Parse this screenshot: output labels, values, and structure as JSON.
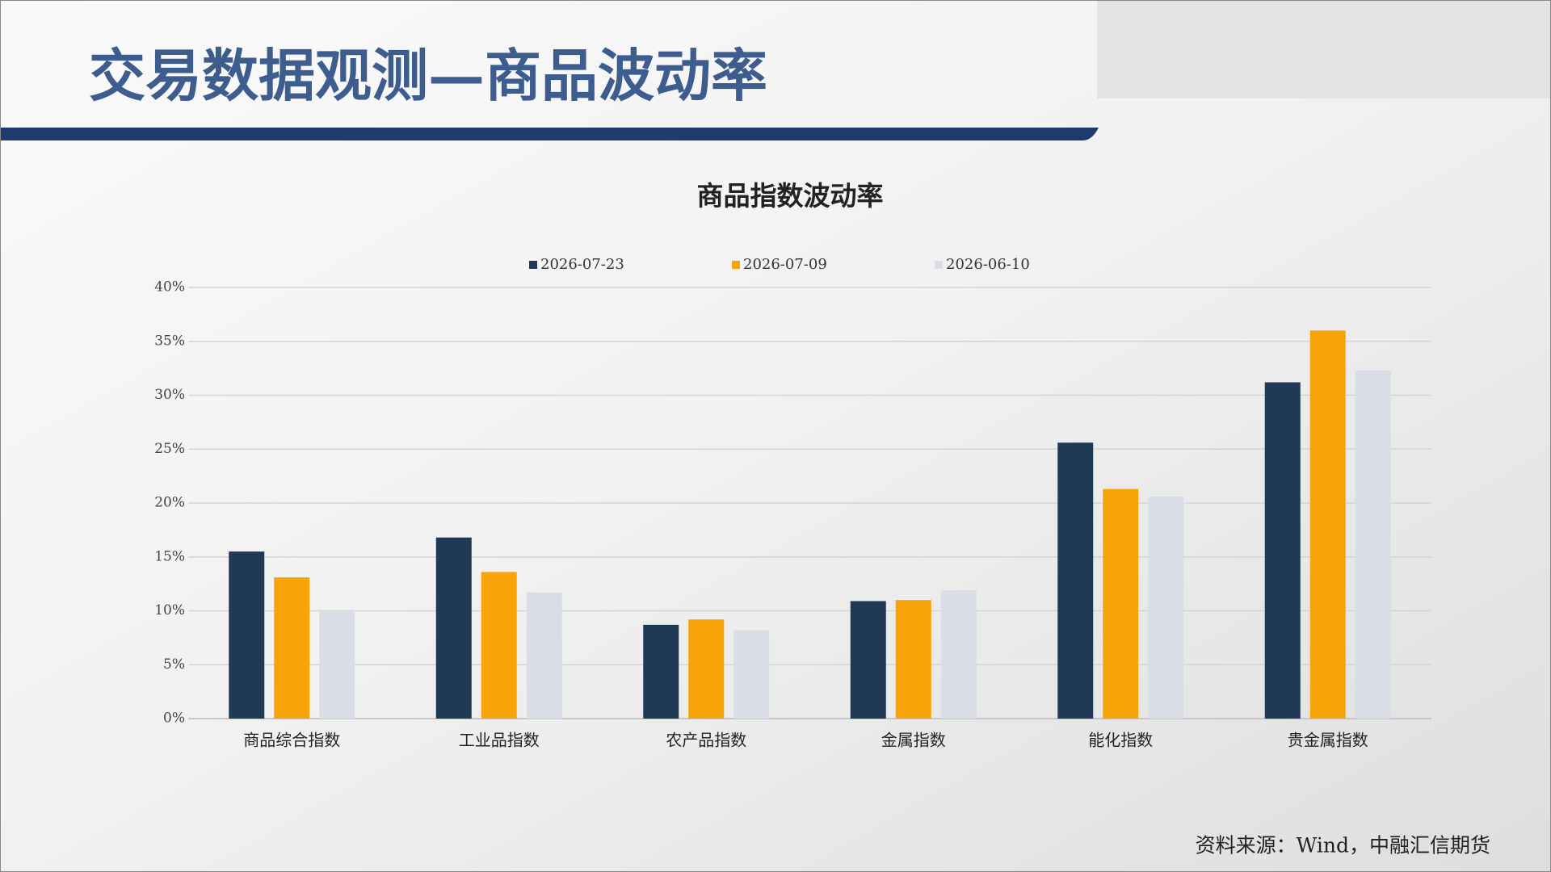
{
  "page": {
    "title": "交易数据观测—商品波动率",
    "source": "资料来源：Wind，中融汇信期货"
  },
  "chart_data": {
    "type": "bar",
    "title": "商品指数波动率",
    "categories": [
      "商品综合指数",
      "工业品指数",
      "农产品指数",
      "金属指数",
      "能化指数",
      "贵金属指数"
    ],
    "series": [
      {
        "name": "2026-07-23",
        "color": "#203a56",
        "values": [
          15.5,
          16.8,
          8.7,
          10.9,
          25.6,
          31.2
        ]
      },
      {
        "name": "2026-07-09",
        "color": "#f9a30b",
        "values": [
          13.1,
          13.6,
          9.2,
          11.0,
          21.3,
          36.0
        ]
      },
      {
        "name": "2026-06-10",
        "color": "#d9dee6",
        "values": [
          10.1,
          11.7,
          8.2,
          11.9,
          20.6,
          32.3
        ]
      }
    ],
    "ylim": [
      0,
      40
    ],
    "yticks": [
      {
        "value": 0,
        "label": "0%"
      },
      {
        "value": 5,
        "label": "5%"
      },
      {
        "value": 10,
        "label": "10%"
      },
      {
        "value": 15,
        "label": "15%"
      },
      {
        "value": 20,
        "label": "20%"
      },
      {
        "value": 25,
        "label": "25%"
      },
      {
        "value": 30,
        "label": "30%"
      },
      {
        "value": 35,
        "label": "35%"
      },
      {
        "value": 40,
        "label": "40%"
      }
    ],
    "grid": true,
    "legend": "top"
  }
}
